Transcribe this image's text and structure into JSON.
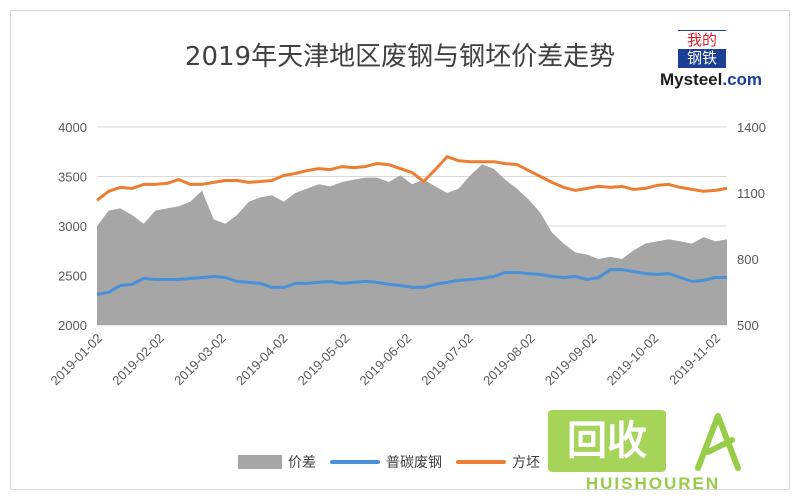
{
  "chart_data": {
    "type": "area+line",
    "title": "2019年天津地区废钢与钢坯价差走势",
    "x_labels": [
      "2019-01-02",
      "2019-02-02",
      "2019-03-02",
      "2019-04-02",
      "2019-05-02",
      "2019-06-02",
      "2019-07-02",
      "2019-08-02",
      "2019-09-02",
      "2019-10-02",
      "2019-11-02"
    ],
    "left_axis": {
      "ticks": [
        2000,
        2500,
        3000,
        3500,
        4000
      ],
      "range": [
        2000,
        4000
      ]
    },
    "right_axis": {
      "ticks": [
        500,
        800,
        1100,
        1400
      ],
      "range": [
        500,
        1400
      ]
    },
    "series": [
      {
        "name": "价差",
        "kind": "area",
        "axis": "right",
        "color": "#a6a6a6",
        "values": [
          950,
          1020,
          1030,
          1000,
          960,
          1020,
          1030,
          1040,
          1060,
          1110,
          980,
          960,
          1000,
          1060,
          1080,
          1090,
          1060,
          1100,
          1120,
          1140,
          1130,
          1150,
          1160,
          1170,
          1170,
          1150,
          1180,
          1140,
          1160,
          1130,
          1100,
          1120,
          1180,
          1230,
          1210,
          1160,
          1120,
          1070,
          1010,
          920,
          870,
          830,
          820,
          800,
          810,
          800,
          840,
          870,
          880,
          890,
          880,
          870,
          900,
          880,
          890
        ]
      },
      {
        "name": "普碳废钢",
        "kind": "line",
        "axis": "left",
        "color": "#4a90d9",
        "values": [
          2310,
          2330,
          2400,
          2410,
          2470,
          2460,
          2460,
          2460,
          2470,
          2480,
          2490,
          2480,
          2440,
          2430,
          2420,
          2380,
          2380,
          2420,
          2420,
          2430,
          2440,
          2420,
          2430,
          2440,
          2430,
          2410,
          2400,
          2380,
          2380,
          2410,
          2430,
          2450,
          2460,
          2470,
          2490,
          2530,
          2530,
          2520,
          2510,
          2490,
          2480,
          2490,
          2460,
          2480,
          2560,
          2560,
          2540,
          2520,
          2510,
          2520,
          2480,
          2440,
          2450,
          2480,
          2480
        ]
      },
      {
        "name": "方坯",
        "kind": "line",
        "axis": "left",
        "color": "#ed7d31",
        "values": [
          3260,
          3350,
          3390,
          3380,
          3420,
          3420,
          3430,
          3470,
          3420,
          3420,
          3440,
          3460,
          3460,
          3440,
          3450,
          3460,
          3510,
          3530,
          3560,
          3580,
          3570,
          3600,
          3590,
          3600,
          3630,
          3620,
          3580,
          3540,
          3450,
          3570,
          3700,
          3660,
          3650,
          3650,
          3650,
          3630,
          3620,
          3560,
          3500,
          3440,
          3390,
          3360,
          3380,
          3400,
          3390,
          3400,
          3370,
          3380,
          3410,
          3420,
          3390,
          3370,
          3350,
          3360,
          3380
        ]
      }
    ],
    "legend": "bottom"
  },
  "branding": {
    "logo_tile": [
      "我的",
      "钢铁"
    ],
    "logo_name": "Mysteel",
    "logo_domain": ".com",
    "watermark_cn": "回收",
    "watermark_en": "HUISHOUREN"
  }
}
